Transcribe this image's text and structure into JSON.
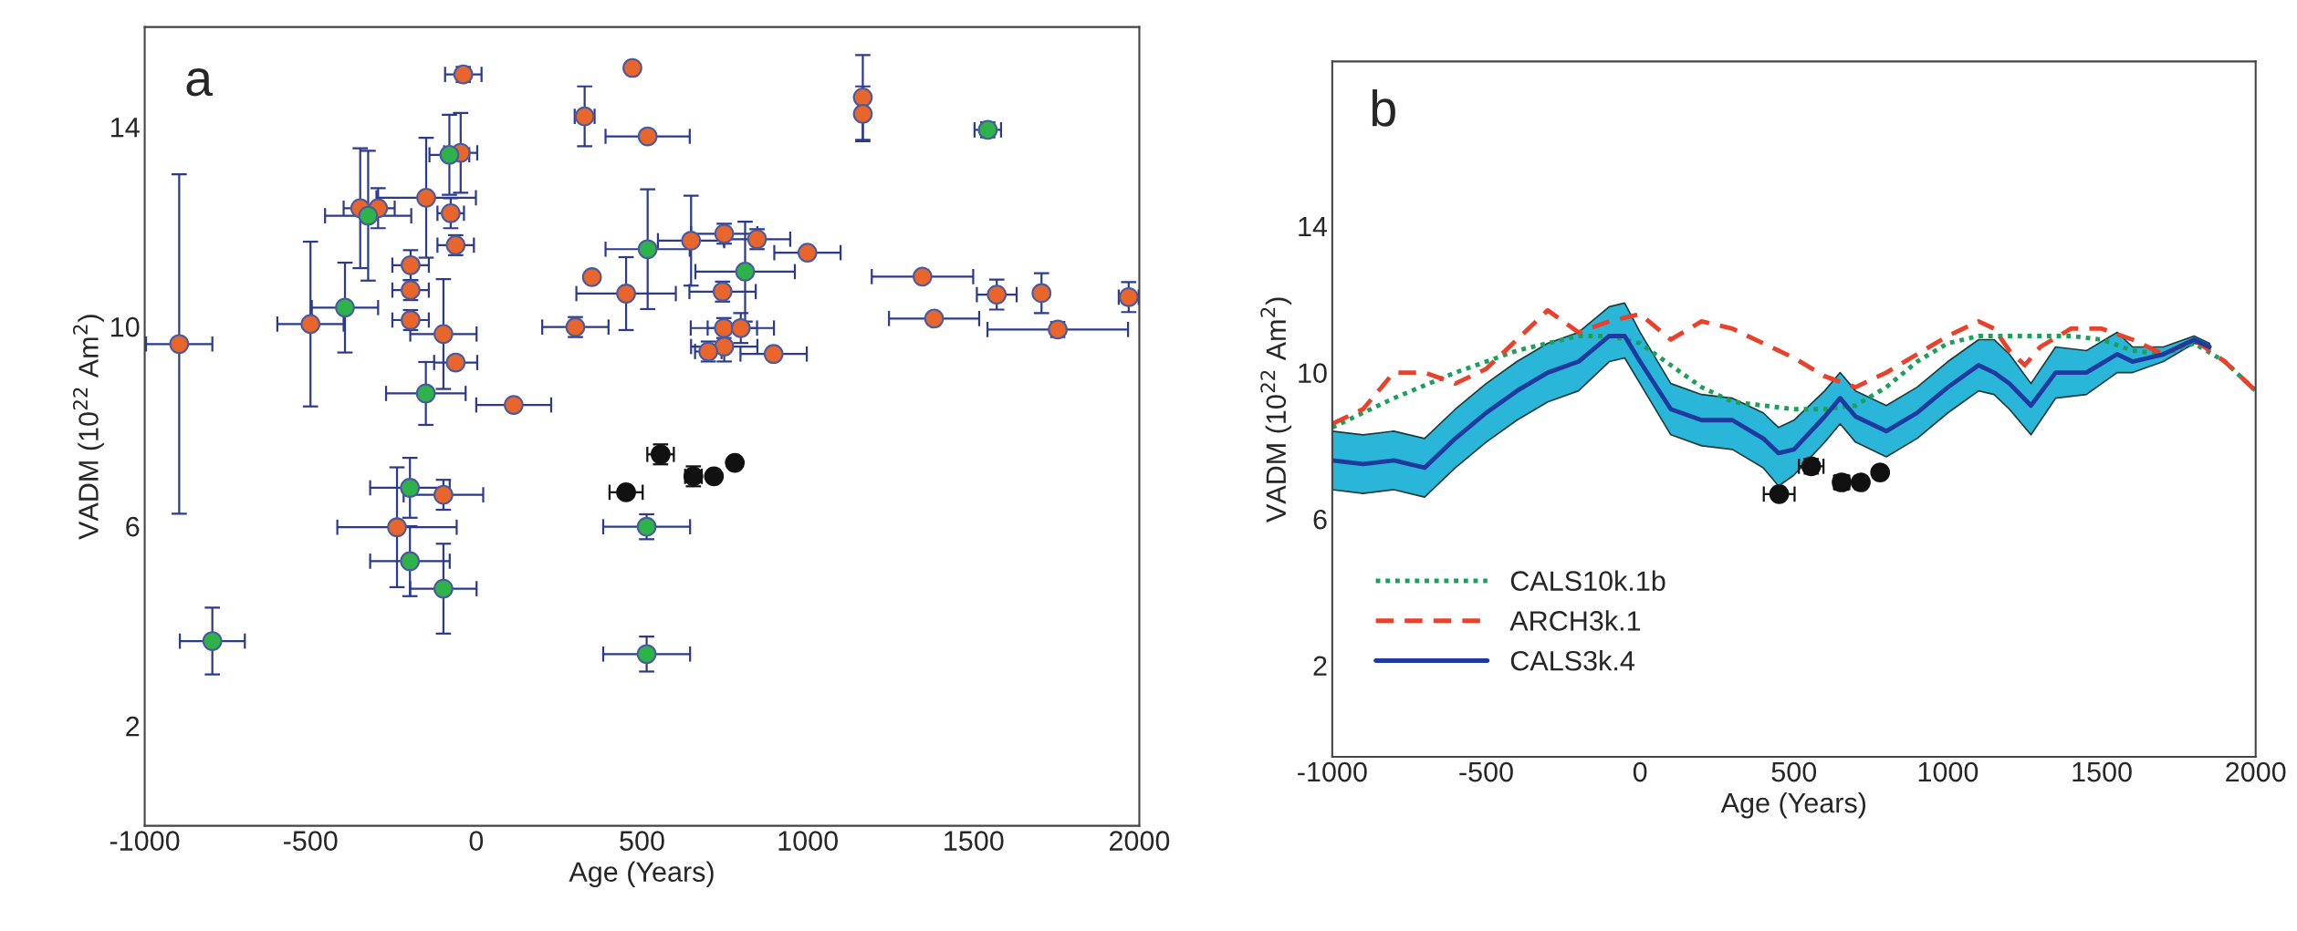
{
  "chart_data": [
    {
      "type": "scatter",
      "title": "a",
      "xlabel": "Age (Years)",
      "ylabel": "VADM (10$^{22}$ Am$^{2}$)",
      "xlim": [
        -1000,
        2000
      ],
      "xticks": [
        -1000,
        -500,
        0,
        500,
        1000,
        1500,
        2000
      ],
      "ylim": [
        0,
        16
      ],
      "yticks": [
        2,
        6,
        10,
        14
      ],
      "grid": false,
      "legend": false,
      "marker": "circle",
      "series": [
        {
          "color": "#e8652c",
          "x": [
            -896,
            -39,
            -47,
            -151,
            -350,
            -296,
            -77,
            -62,
            -198,
            -198,
            -198,
            -500,
            -99,
            -62,
            113,
            471,
            327,
            517,
            349,
            452,
            299,
            648,
            748,
            847,
            999,
            743,
            747,
            798,
            748,
            700,
            897,
            1166,
            1166,
            1346,
            1570,
            1705,
            1968,
            1381,
            1754,
            -99,
            -239
          ],
          "values": [
            9.65,
            15.05,
            13.48,
            12.58,
            12.37,
            12.37,
            12.27,
            11.63,
            11.23,
            10.73,
            10.13,
            10.05,
            9.85,
            9.28,
            8.43,
            15.18,
            14.21,
            13.81,
            10.99,
            10.66,
            9.99,
            11.72,
            11.86,
            11.75,
            11.48,
            10.7,
            9.97,
            9.97,
            9.6,
            9.5,
            9.45,
            14.59,
            14.26,
            11.0,
            10.64,
            10.67,
            10.59,
            10.16,
            9.94,
            6.63,
            5.98
          ],
          "xerrors": [
            100,
            55,
            50,
            150,
            50,
            50,
            40,
            55,
            55,
            55,
            55,
            100,
            100,
            65,
            113,
            null,
            30,
            127,
            null,
            150,
            100,
            100,
            100,
            100,
            100,
            100,
            100,
            100,
            100,
            40,
            100,
            null,
            null,
            153,
            60,
            null,
            30,
            136,
            212,
            120,
            180
          ],
          "errors": [
            3.4,
            0.15,
            0.8,
            1.2,
            1.2,
            0.4,
            0.3,
            0.2,
            0.3,
            0.2,
            0.2,
            1.65,
            1.1,
            null,
            null,
            null,
            0.6,
            null,
            null,
            0.73,
            0.2,
            0.9,
            0.2,
            0.2,
            null,
            0.2,
            0.2,
            0.3,
            0.3,
            0.2,
            null,
            0.85,
            0.55,
            null,
            0.3,
            0.4,
            0.3,
            null,
            0.15,
            0.3,
            1.2
          ]
        },
        {
          "color": "#2db34a",
          "x": [
            -81,
            -326,
            -396,
            -152,
            517,
            811,
            1543,
            -200,
            -200,
            -99,
            -796,
            514,
            514
          ],
          "values": [
            13.44,
            12.22,
            10.38,
            8.66,
            11.55,
            11.1,
            13.94,
            6.77,
            5.3,
            4.75,
            3.7,
            5.99,
            3.44
          ],
          "xerrors": [
            60,
            130,
            100,
            120,
            127,
            150,
            40,
            120,
            120,
            100,
            98,
            131,
            131
          ],
          "errors": [
            0.8,
            1.3,
            0.9,
            0.63,
            1.2,
            1.0,
            0.15,
            0.6,
            0.7,
            0.9,
            0.67,
            0.25,
            0.35
          ]
        },
        {
          "color": "#111111",
          "x": [
            452,
            556,
            655,
            717,
            780
          ],
          "values": [
            6.68,
            7.44,
            7.0,
            7.0,
            7.27
          ],
          "xerrors": [
            50,
            40,
            25,
            null,
            null
          ],
          "errors": [
            null,
            0.2,
            0.2,
            null,
            null
          ]
        }
      ]
    },
    {
      "type": "line",
      "title": "b",
      "xlabel": "Age (Years)",
      "ylabel": "VADM (10$^{22}$ Am$^{2}$)",
      "xlim": [
        -1000,
        2000
      ],
      "xticks": [
        -1000,
        -500,
        0,
        500,
        1000,
        1500,
        2000
      ],
      "ylim": [
        -0.5,
        18.5
      ],
      "yticks": [
        2,
        6,
        10,
        14
      ],
      "grid": false,
      "legend": "bottom left",
      "marker": "none",
      "series": [
        {
          "name": "CALS10k.1b",
          "color": "#1aa05a",
          "line_style": "dotted",
          "x": [
            -1000,
            -800,
            -600,
            -400,
            -200,
            -100,
            0,
            100,
            200,
            300,
            400,
            500,
            600,
            700,
            800,
            900,
            1000,
            1100,
            1200,
            1300,
            1400,
            1500,
            1600,
            1700,
            1800,
            1900,
            2000
          ],
          "values": [
            8.5,
            9.3,
            10.0,
            10.6,
            11.0,
            11.0,
            10.8,
            10.2,
            9.6,
            9.2,
            9.1,
            9.0,
            9.0,
            9.1,
            9.6,
            10.3,
            10.8,
            11.0,
            11.0,
            11.0,
            11.0,
            10.9,
            10.6,
            10.5,
            10.8,
            10.3,
            9.5
          ]
        },
        {
          "name": "ARCH3k.1",
          "color": "#e8412c",
          "line_style": "dashed",
          "x": [
            -1000,
            -900,
            -800,
            -700,
            -600,
            -500,
            -400,
            -300,
            -200,
            -100,
            0,
            100,
            200,
            300,
            400,
            500,
            600,
            700,
            800,
            900,
            1000,
            1100,
            1150,
            1200,
            1250,
            1300,
            1400,
            1500,
            1600,
            1700,
            1800,
            1900,
            2000
          ],
          "values": [
            8.6,
            9.0,
            10.0,
            10.0,
            9.7,
            10.1,
            10.9,
            11.7,
            11.1,
            11.4,
            11.6,
            10.9,
            11.4,
            11.2,
            10.8,
            10.4,
            9.9,
            9.6,
            10.0,
            10.5,
            11.0,
            11.4,
            11.2,
            10.6,
            10.2,
            10.7,
            11.2,
            11.2,
            10.9,
            10.5,
            10.9,
            10.3,
            9.5
          ]
        },
        {
          "name": "CALS3k.4",
          "color": "#1f3a9e",
          "line_style": "solid",
          "x": [
            -1000,
            -900,
            -800,
            -700,
            -600,
            -500,
            -400,
            -300,
            -200,
            -100,
            -50,
            0,
            100,
            200,
            300,
            400,
            450,
            500,
            600,
            650,
            700,
            800,
            900,
            1000,
            1100,
            1150,
            1200,
            1270,
            1350,
            1450,
            1550,
            1600,
            1700,
            1800,
            1850
          ],
          "values": [
            7.6,
            7.5,
            7.6,
            7.4,
            8.2,
            8.9,
            9.5,
            10.0,
            10.3,
            11.0,
            11.0,
            10.3,
            9.0,
            8.7,
            8.7,
            8.2,
            7.8,
            7.9,
            8.8,
            9.3,
            8.8,
            8.4,
            8.9,
            9.6,
            10.2,
            10.0,
            9.7,
            9.1,
            10.0,
            10.0,
            10.5,
            10.3,
            10.5,
            10.9,
            10.7
          ],
          "lower": [
            6.8,
            6.7,
            6.8,
            6.6,
            7.4,
            8.1,
            8.7,
            9.2,
            9.5,
            10.3,
            10.4,
            9.7,
            8.3,
            8.0,
            7.9,
            7.4,
            6.9,
            7.2,
            8.1,
            8.6,
            8.1,
            7.7,
            8.2,
            8.9,
            9.5,
            9.4,
            9.0,
            8.3,
            9.3,
            9.4,
            10.0,
            10.0,
            10.3,
            10.8,
            10.7
          ],
          "upper": [
            8.4,
            8.3,
            8.4,
            8.2,
            9.0,
            9.7,
            10.3,
            10.8,
            11.1,
            11.8,
            11.9,
            11.1,
            9.7,
            9.4,
            9.3,
            8.9,
            8.5,
            8.7,
            9.5,
            10.0,
            9.5,
            9.1,
            9.6,
            10.3,
            10.9,
            10.9,
            10.5,
            9.7,
            10.7,
            10.6,
            11.1,
            10.7,
            10.7,
            11.0,
            10.8
          ]
        },
        {
          "type": "scatter",
          "marker": "circle",
          "color": "#111111",
          "x": [
            452,
            556,
            655,
            717,
            780
          ],
          "values": [
            6.68,
            7.44,
            7.0,
            7.0,
            7.27
          ],
          "xerrors": [
            50,
            40,
            25,
            null,
            null
          ],
          "errors": [
            null,
            0.2,
            0.2,
            null,
            null
          ]
        }
      ]
    }
  ]
}
